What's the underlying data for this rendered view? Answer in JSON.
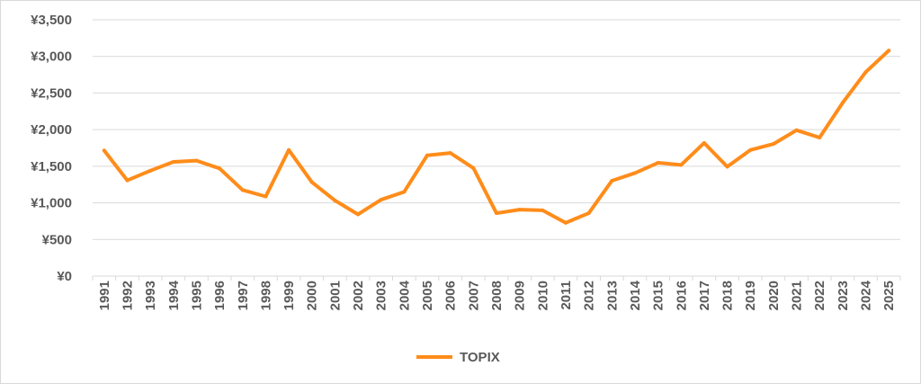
{
  "chart_data": {
    "type": "line",
    "title": "",
    "xlabel": "",
    "ylabel": "",
    "ylim": [
      0,
      3500
    ],
    "y_ticks": [
      0,
      500,
      1000,
      1500,
      2000,
      2500,
      3000,
      3500
    ],
    "y_tick_labels": [
      "¥0",
      "¥500",
      "¥1,000",
      "¥1,500",
      "¥2,000",
      "¥2,500",
      "¥3,000",
      "¥3,500"
    ],
    "grid": "horizontal",
    "legend": {
      "position": "bottom-center"
    },
    "x": [
      "1991",
      "1992",
      "1993",
      "1994",
      "1995",
      "1996",
      "1997",
      "1998",
      "1999",
      "2000",
      "2001",
      "2002",
      "2003",
      "2004",
      "2005",
      "2006",
      "2007",
      "2008",
      "2009",
      "2010",
      "2011",
      "2012",
      "2013",
      "2014",
      "2015",
      "2016",
      "2017",
      "2018",
      "2019",
      "2020",
      "2021",
      "2022",
      "2023",
      "2024",
      "2025"
    ],
    "series": [
      {
        "name": "TOPIX",
        "color": "#ff8c1a",
        "values": [
          1715,
          1307,
          1439,
          1560,
          1577,
          1470,
          1175,
          1087,
          1722,
          1283,
          1032,
          843,
          1043,
          1150,
          1649,
          1681,
          1475,
          859,
          907,
          898,
          728,
          859,
          1302,
          1407,
          1547,
          1518,
          1818,
          1494,
          1721,
          1804,
          1992,
          1891,
          2366,
          2785,
          3080
        ]
      }
    ]
  }
}
